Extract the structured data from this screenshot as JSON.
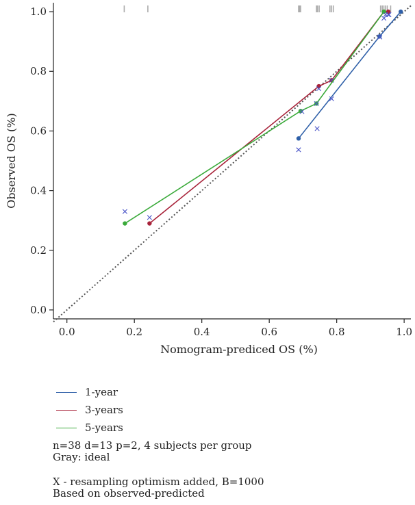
{
  "chart_data": {
    "type": "line",
    "xlabel": "Nomogram-prediced OS (%)",
    "ylabel": "Observed OS (%)",
    "xlim": [
      -0.04,
      1.02
    ],
    "ylim": [
      -0.03,
      1.03
    ],
    "x_ticks": [
      "0.0",
      "0.2",
      "0.4",
      "0.6",
      "0.8",
      "1.0"
    ],
    "y_ticks": [
      "0.0",
      "0.2",
      "0.4",
      "0.6",
      "0.8",
      "1.0"
    ],
    "grid": false,
    "ideal_line": {
      "x": [
        -0.04,
        1.02
      ],
      "y": [
        -0.04,
        1.02
      ],
      "color": "#555555",
      "style": "dotted"
    },
    "series": [
      {
        "name": "1-year",
        "color": "#2e5fa8",
        "x": [
          0.687,
          0.927,
          0.99
        ],
        "y": [
          0.575,
          0.917,
          1.0
        ],
        "corrected_x": [
          0.687,
          0.742,
          0.785,
          0.928,
          0.955
        ],
        "corrected_y": [
          0.537,
          0.608,
          0.708,
          0.915,
          0.99
        ]
      },
      {
        "name": "3-years",
        "color": "#a8233a",
        "x": [
          0.245,
          0.747,
          0.785,
          0.94,
          0.953
        ],
        "y": [
          0.29,
          0.75,
          0.77,
          1.0,
          1.0
        ],
        "corrected_x": [
          0.245,
          0.747,
          0.785,
          0.94,
          0.953
        ],
        "corrected_y": [
          0.31,
          0.742,
          0.77,
          0.978,
          0.99
        ]
      },
      {
        "name": "5-years",
        "color": "#3aaa3a",
        "x": [
          0.172,
          0.693,
          0.74,
          0.94
        ],
        "y": [
          0.29,
          0.667,
          0.692,
          1.0
        ],
        "corrected_x": [
          0.172,
          0.697,
          0.74,
          0.945
        ],
        "corrected_y": [
          0.33,
          0.665,
          0.692,
          0.99
        ]
      }
    ],
    "rug": [
      0.17,
      0.24,
      0.687,
      0.69,
      0.693,
      0.74,
      0.743,
      0.748,
      0.78,
      0.785,
      0.79,
      0.93,
      0.935,
      0.94,
      0.945,
      0.95,
      0.96
    ]
  },
  "legend": [
    {
      "label": "1-year",
      "color": "#2e5fa8"
    },
    {
      "label": "3-years",
      "color": "#a8233a"
    },
    {
      "label": "5-years",
      "color": "#3aaa3a"
    }
  ],
  "notes": {
    "line1": "n=38 d=13 p=2, 4 subjects per group",
    "line2": "Gray: ideal",
    "line3": "X - resampling optimism added, B=1000",
    "line4": "Based on observed-predicted"
  }
}
